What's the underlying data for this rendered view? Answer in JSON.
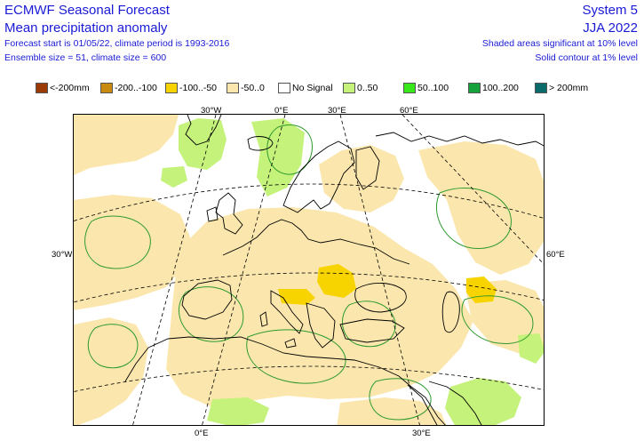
{
  "header": {
    "title": "ECMWF Seasonal Forecast",
    "subtitle": "Mean precipitation anomaly",
    "forecast_line": "Forecast start is 01/05/22, climate period is 1993-2016",
    "ensemble_line": "Ensemble size = 51, climate size = 600",
    "system": "System 5",
    "season": "JJA 2022",
    "shaded_note": "Shaded areas significant at 10% level",
    "contour_note": "Solid contour at 1% level"
  },
  "legend": [
    {
      "label": "<-200mm",
      "color": "#9a3a05"
    },
    {
      "label": "-200..-100",
      "color": "#c98a10"
    },
    {
      "label": "-100..-50",
      "color": "#f7d300"
    },
    {
      "label": "-50..0",
      "color": "#fbe7ad"
    },
    {
      "label": "No Signal",
      "color": "#ffffff"
    },
    {
      "label": "0..50",
      "color": "#c5f27a"
    },
    {
      "label": "50..100",
      "color": "#38e81a"
    },
    {
      "label": "100..200",
      "color": "#15a13c"
    },
    {
      "label": "> 200mm",
      "color": "#0b6b6b"
    }
  ],
  "map_labels": {
    "top_30w": "30°W",
    "top_0e": "0°E",
    "top_30e": "30°E",
    "top_60e": "60°E",
    "left_30w": "30°W",
    "right_60e": "60°E",
    "bottom_0e": "0°E",
    "bottom_30e": "30°E"
  },
  "colors": {
    "text": "#1a1ad6",
    "coast": "#000000",
    "contour": "#2e9a2e",
    "grid": "#000000"
  }
}
